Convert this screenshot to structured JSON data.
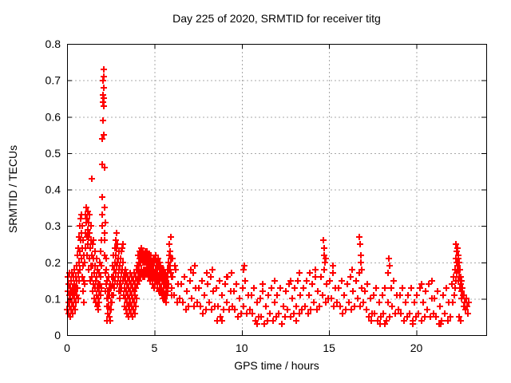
{
  "colors": {
    "background": "#ffffff",
    "marker": "#ff0000",
    "grid": "#a8a8a8",
    "axis": "#000000",
    "text": "#000000"
  },
  "chart_data": {
    "type": "scatter",
    "title": "Day 225 of 2020, SRMTID for receiver titg",
    "xlabel": "GPS time / hours",
    "ylabel": "SRMTID / TECUs",
    "xlim": [
      0,
      24
    ],
    "ylim": [
      0,
      0.8
    ],
    "x_ticks": [
      0,
      5,
      10,
      15,
      20
    ],
    "x_tick_labels": [
      "0",
      "5",
      "10",
      "15",
      "20"
    ],
    "y_ticks": [
      0,
      0.1,
      0.2,
      0.3,
      0.4,
      0.5,
      0.6,
      0.7,
      0.8
    ],
    "y_tick_labels": [
      "0",
      "0.1",
      "0.2",
      "0.3",
      "0.4",
      "0.5",
      "0.6",
      "0.7",
      "0.8"
    ],
    "grid": true,
    "legend": false,
    "marker": {
      "shape": "plus",
      "color": "#ff0000",
      "size": 8
    },
    "points_xy": [
      0.02,
      0.07,
      0.03,
      0.12,
      0.05,
      0.16,
      0.07,
      0.09,
      0.08,
      0.14,
      0.1,
      0.06,
      0.12,
      0.11,
      0.13,
      0.17,
      0.15,
      0.08,
      0.17,
      0.13,
      0.18,
      0.05,
      0.2,
      0.1,
      0.22,
      0.15,
      0.23,
      0.07,
      0.25,
      0.12,
      0.27,
      0.17,
      0.28,
      0.09,
      0.3,
      0.13,
      0.32,
      0.06,
      0.33,
      0.11,
      0.35,
      0.16,
      0.37,
      0.08,
      0.38,
      0.12,
      0.4,
      0.18,
      0.42,
      0.1,
      0.43,
      0.14,
      0.45,
      0.07,
      0.47,
      0.12,
      0.48,
      0.16,
      0.5,
      0.09,
      0.52,
      0.13,
      0.53,
      0.19,
      0.55,
      0.11,
      0.57,
      0.15,
      0.58,
      0.22,
      0.6,
      0.13,
      0.62,
      0.17,
      0.63,
      0.24,
      0.65,
      0.1,
      0.67,
      0.2,
      0.68,
      0.27,
      0.7,
      0.15,
      0.72,
      0.23,
      0.73,
      0.3,
      0.75,
      0.18,
      0.77,
      0.26,
      0.78,
      0.32,
      0.8,
      0.21,
      0.82,
      0.28,
      0.83,
      0.33,
      0.85,
      0.16,
      0.87,
      0.24,
      0.88,
      0.3,
      0.9,
      0.19,
      0.92,
      0.26,
      0.93,
      0.12,
      0.95,
      0.22,
      0.97,
      0.15,
      0.98,
      0.09,
      1.0,
      0.14,
      1.02,
      0.2,
      1.03,
      0.28,
      1.05,
      0.33,
      1.07,
      0.24,
      1.08,
      0.31,
      1.1,
      0.35,
      1.12,
      0.27,
      1.13,
      0.32,
      1.15,
      0.22,
      1.17,
      0.29,
      1.18,
      0.34,
      1.2,
      0.25,
      1.22,
      0.31,
      1.23,
      0.18,
      1.25,
      0.27,
      1.27,
      0.33,
      1.28,
      0.21,
      1.3,
      0.28,
      1.32,
      0.15,
      1.33,
      0.24,
      1.35,
      0.3,
      1.37,
      0.19,
      1.38,
      0.26,
      1.4,
      0.43,
      1.42,
      0.22,
      1.43,
      0.16,
      1.45,
      0.25,
      1.47,
      0.12,
      1.48,
      0.19,
      1.5,
      0.26,
      1.52,
      0.14,
      1.53,
      0.21,
      1.55,
      0.1,
      1.57,
      0.17,
      1.58,
      0.23,
      1.6,
      0.13,
      1.62,
      0.19,
      1.63,
      0.09,
      1.65,
      0.15,
      1.67,
      0.21,
      1.68,
      0.11,
      1.7,
      0.16,
      1.72,
      0.08,
      1.73,
      0.13,
      1.75,
      0.18,
      1.77,
      0.1,
      1.78,
      0.14,
      1.8,
      0.07,
      1.82,
      0.12,
      1.83,
      0.17,
      1.85,
      0.09,
      1.87,
      0.14,
      1.88,
      0.2,
      1.9,
      0.11,
      1.92,
      0.16,
      1.93,
      0.23,
      1.95,
      0.13,
      1.97,
      0.19,
      1.98,
      0.26,
      2.0,
      0.3,
      2.0,
      0.38,
      2.02,
      0.33,
      2.02,
      0.47,
      2.03,
      0.54,
      2.05,
      0.59,
      2.05,
      0.64,
      2.07,
      0.66,
      2.07,
      0.7,
      2.08,
      0.68,
      2.08,
      0.73,
      2.1,
      0.71,
      2.1,
      0.65,
      2.12,
      0.63,
      2.12,
      0.55,
      2.13,
      0.46,
      2.13,
      0.28,
      2.15,
      0.35,
      2.15,
      0.22,
      2.17,
      0.26,
      2.18,
      0.17,
      2.2,
      0.12,
      2.2,
      0.31,
      2.22,
      0.21,
      2.23,
      0.14,
      2.25,
      0.18,
      2.27,
      0.1,
      2.28,
      0.15,
      2.3,
      0.08,
      2.3,
      0.04,
      2.32,
      0.12,
      2.33,
      0.06,
      2.35,
      0.1,
      2.37,
      0.16,
      2.38,
      0.08,
      2.4,
      0.13,
      2.42,
      0.05,
      2.43,
      0.11,
      2.45,
      0.07,
      2.47,
      0.14,
      2.48,
      0.04,
      2.5,
      0.09,
      2.52,
      0.13,
      2.53,
      0.07,
      2.55,
      0.11,
      2.57,
      0.16,
      2.58,
      0.09,
      2.6,
      0.14,
      2.62,
      0.19,
      2.63,
      0.11,
      2.65,
      0.16,
      2.67,
      0.22,
      2.68,
      0.13,
      2.7,
      0.18,
      2.72,
      0.24,
      2.73,
      0.15,
      2.75,
      0.2,
      2.77,
      0.26,
      2.78,
      0.17,
      2.8,
      0.22,
      2.82,
      0.28,
      2.83,
      0.19,
      2.85,
      0.24,
      2.87,
      0.14,
      2.88,
      0.2,
      2.9,
      0.25,
      2.92,
      0.16,
      2.93,
      0.21,
      2.95,
      0.12,
      2.97,
      0.18,
      2.98,
      0.23,
      3.0,
      0.14,
      3.02,
      0.19,
      3.03,
      0.1,
      3.05,
      0.15,
      3.07,
      0.21,
      3.08,
      0.12,
      3.1,
      0.17,
      3.12,
      0.23,
      3.13,
      0.13,
      3.15,
      0.18,
      3.17,
      0.24,
      3.18,
      0.15,
      3.2,
      0.2,
      3.22,
      0.25,
      3.23,
      0.16,
      3.25,
      0.11,
      3.27,
      0.17,
      3.28,
      0.08,
      3.3,
      0.13,
      3.32,
      0.18,
      3.33,
      0.1,
      3.35,
      0.15,
      3.37,
      0.07,
      3.38,
      0.12,
      3.4,
      0.17,
      3.42,
      0.09,
      3.43,
      0.14,
      3.45,
      0.06,
      3.47,
      0.11,
      3.48,
      0.16,
      3.5,
      0.08,
      3.52,
      0.13,
      3.53,
      0.05,
      3.55,
      0.1,
      3.57,
      0.15,
      3.58,
      0.07,
      3.6,
      0.12,
      3.62,
      0.17,
      3.63,
      0.09,
      3.65,
      0.14,
      3.67,
      0.06,
      3.68,
      0.11,
      3.7,
      0.16,
      3.72,
      0.08,
      3.73,
      0.13,
      3.75,
      0.05,
      3.77,
      0.1,
      3.78,
      0.15,
      3.8,
      0.07,
      3.82,
      0.12,
      3.83,
      0.17,
      3.85,
      0.09,
      3.87,
      0.14,
      3.88,
      0.06,
      3.9,
      0.11,
      3.92,
      0.16,
      3.93,
      0.08,
      3.95,
      0.13,
      3.97,
      0.18,
      3.98,
      0.1,
      4.0,
      0.15,
      4.02,
      0.19,
      4.03,
      0.14,
      4.05,
      0.18,
      4.07,
      0.22,
      4.08,
      0.16,
      4.1,
      0.2,
      4.12,
      0.15,
      4.13,
      0.19,
      4.15,
      0.23,
      4.17,
      0.17,
      4.18,
      0.21,
      4.2,
      0.16,
      4.22,
      0.2,
      4.23,
      0.24,
      4.25,
      0.18,
      4.27,
      0.22,
      4.28,
      0.17,
      4.3,
      0.21,
      4.32,
      0.16,
      4.33,
      0.2,
      4.35,
      0.23,
      4.37,
      0.18,
      4.38,
      0.22,
      4.4,
      0.17,
      4.42,
      0.21,
      4.43,
      0.16,
      4.45,
      0.2,
      4.47,
      0.23,
      4.48,
      0.18,
      4.5,
      0.21,
      4.52,
      0.17,
      4.53,
      0.2,
      4.55,
      0.23,
      4.57,
      0.18,
      4.58,
      0.21,
      4.6,
      0.17,
      4.62,
      0.2,
      4.63,
      0.22,
      4.65,
      0.18,
      4.67,
      0.21,
      4.68,
      0.16,
      4.7,
      0.19,
      4.72,
      0.22,
      4.73,
      0.17,
      4.75,
      0.2,
      4.77,
      0.15,
      4.78,
      0.19,
      4.8,
      0.22,
      4.82,
      0.17,
      4.83,
      0.2,
      4.85,
      0.16,
      4.87,
      0.19,
      4.88,
      0.14,
      4.9,
      0.18,
      4.92,
      0.21,
      4.93,
      0.16,
      4.95,
      0.19,
      4.97,
      0.13,
      4.98,
      0.17,
      5.0,
      0.2,
      5.02,
      0.16,
      5.03,
      0.21,
      5.05,
      0.14,
      5.07,
      0.18,
      5.08,
      0.22,
      5.1,
      0.16,
      5.12,
      0.2,
      5.13,
      0.15,
      5.15,
      0.19,
      5.17,
      0.13,
      5.18,
      0.17,
      5.2,
      0.21,
      5.22,
      0.15,
      5.23,
      0.19,
      5.25,
      0.12,
      5.27,
      0.16,
      5.28,
      0.2,
      5.3,
      0.14,
      5.32,
      0.18,
      5.33,
      0.12,
      5.35,
      0.16,
      5.37,
      0.19,
      5.38,
      0.13,
      5.4,
      0.17,
      5.42,
      0.11,
      5.43,
      0.15,
      5.45,
      0.18,
      5.47,
      0.12,
      5.48,
      0.16,
      5.5,
      0.1,
      5.52,
      0.14,
      5.53,
      0.18,
      5.55,
      0.12,
      5.57,
      0.16,
      5.58,
      0.1,
      5.6,
      0.14,
      5.62,
      0.17,
      5.63,
      0.11,
      5.65,
      0.15,
      5.67,
      0.09,
      5.68,
      0.13,
      5.7,
      0.16,
      5.72,
      0.11,
      5.73,
      0.14,
      5.75,
      0.18,
      5.77,
      0.12,
      5.78,
      0.16,
      5.8,
      0.2,
      5.82,
      0.14,
      5.83,
      0.18,
      5.85,
      0.22,
      5.87,
      0.25,
      5.88,
      0.19,
      5.9,
      0.23,
      5.92,
      0.27,
      5.93,
      0.17,
      5.95,
      0.21,
      5.97,
      0.13,
      5.98,
      0.16,
      6.0,
      0.11,
      6.04,
      0.16,
      6.05,
      0.21,
      6.12,
      0.11,
      6.15,
      0.19,
      6.21,
      0.18,
      6.29,
      0.09,
      6.37,
      0.14,
      6.46,
      0.1,
      6.54,
      0.14,
      6.62,
      0.09,
      6.71,
      0.16,
      6.79,
      0.07,
      6.87,
      0.12,
      6.96,
      0.08,
      7.04,
      0.15,
      7.1,
      0.18,
      7.12,
      0.1,
      7.21,
      0.17,
      7.29,
      0.08,
      7.3,
      0.19,
      7.37,
      0.13,
      7.46,
      0.09,
      7.54,
      0.13,
      7.62,
      0.08,
      7.71,
      0.15,
      7.79,
      0.06,
      7.87,
      0.11,
      7.96,
      0.07,
      8.02,
      0.17,
      8.04,
      0.14,
      8.12,
      0.09,
      8.21,
      0.16,
      8.29,
      0.07,
      8.32,
      0.18,
      8.37,
      0.12,
      8.46,
      0.08,
      8.54,
      0.13,
      8.6,
      0.04,
      8.62,
      0.08,
      8.71,
      0.15,
      8.79,
      0.05,
      8.85,
      0.04,
      8.87,
      0.11,
      8.96,
      0.07,
      9.04,
      0.14,
      9.12,
      0.09,
      9.12,
      0.16,
      9.21,
      0.16,
      9.29,
      0.07,
      9.37,
      0.12,
      9.42,
      0.17,
      9.46,
      0.08,
      9.54,
      0.12,
      9.62,
      0.07,
      9.71,
      0.14,
      9.79,
      0.05,
      9.87,
      0.1,
      9.96,
      0.06,
      10.04,
      0.13,
      10.08,
      0.18,
      10.12,
      0.08,
      10.14,
      0.19,
      10.21,
      0.15,
      10.29,
      0.06,
      10.37,
      0.11,
      10.46,
      0.07,
      10.54,
      0.11,
      10.62,
      0.06,
      10.71,
      0.13,
      10.79,
      0.04,
      10.87,
      0.09,
      10.9,
      0.03,
      10.96,
      0.05,
      11.04,
      0.1,
      11.12,
      0.05,
      11.2,
      0.14,
      11.21,
      0.12,
      11.29,
      0.03,
      11.37,
      0.08,
      11.46,
      0.04,
      11.54,
      0.11,
      11.62,
      0.06,
      11.71,
      0.13,
      11.79,
      0.04,
      11.87,
      0.09,
      11.9,
      0.15,
      11.96,
      0.05,
      12.04,
      0.11,
      12.12,
      0.06,
      12.21,
      0.13,
      12.29,
      0.03,
      12.37,
      0.08,
      12.46,
      0.05,
      12.54,
      0.12,
      12.62,
      0.07,
      12.71,
      0.14,
      12.79,
      0.05,
      12.8,
      0.15,
      12.87,
      0.1,
      12.96,
      0.06,
      13.04,
      0.13,
      13.1,
      0.04,
      13.12,
      0.08,
      13.21,
      0.15,
      13.29,
      0.06,
      13.3,
      0.17,
      13.37,
      0.11,
      13.46,
      0.07,
      13.54,
      0.13,
      13.62,
      0.08,
      13.71,
      0.15,
      13.79,
      0.06,
      13.87,
      0.11,
      13.9,
      0.17,
      13.96,
      0.07,
      14.04,
      0.14,
      14.12,
      0.09,
      14.2,
      0.18,
      14.21,
      0.16,
      14.29,
      0.07,
      14.37,
      0.12,
      14.46,
      0.08,
      14.54,
      0.16,
      14.62,
      0.11,
      14.68,
      0.26,
      14.7,
      0.24,
      14.71,
      0.18,
      14.73,
      0.22,
      14.76,
      0.2,
      14.79,
      0.09,
      14.82,
      0.21,
      14.87,
      0.14,
      14.96,
      0.1,
      15.04,
      0.15,
      15.12,
      0.1,
      15.2,
      0.19,
      15.21,
      0.17,
      15.29,
      0.08,
      15.37,
      0.13,
      15.46,
      0.09,
      15.54,
      0.13,
      15.62,
      0.08,
      15.71,
      0.15,
      15.79,
      0.06,
      15.87,
      0.11,
      15.96,
      0.07,
      16.04,
      0.14,
      16.12,
      0.09,
      16.21,
      0.16,
      16.29,
      0.07,
      16.3,
      0.18,
      16.37,
      0.12,
      16.46,
      0.08,
      16.54,
      0.15,
      16.62,
      0.1,
      16.71,
      0.17,
      16.75,
      0.27,
      16.78,
      0.25,
      16.79,
      0.08,
      16.81,
      0.22,
      16.84,
      0.2,
      16.87,
      0.13,
      16.88,
      0.18,
      16.96,
      0.09,
      17.04,
      0.12,
      17.12,
      0.07,
      17.21,
      0.14,
      17.29,
      0.05,
      17.37,
      0.1,
      17.4,
      0.04,
      17.46,
      0.06,
      17.54,
      0.11,
      17.62,
      0.06,
      17.71,
      0.13,
      17.79,
      0.04,
      17.87,
      0.09,
      17.9,
      0.03,
      17.96,
      0.05,
      18.04,
      0.11,
      18.12,
      0.06,
      18.2,
      0.03,
      18.21,
      0.13,
      18.29,
      0.04,
      18.37,
      0.09,
      18.4,
      0.17,
      18.44,
      0.21,
      18.46,
      0.05,
      18.48,
      0.19,
      18.54,
      0.13,
      18.62,
      0.08,
      18.71,
      0.15,
      18.79,
      0.06,
      18.87,
      0.11,
      18.96,
      0.07,
      19.04,
      0.11,
      19.12,
      0.06,
      19.21,
      0.13,
      19.29,
      0.04,
      19.37,
      0.09,
      19.46,
      0.05,
      19.54,
      0.11,
      19.62,
      0.06,
      19.71,
      0.13,
      19.79,
      0.04,
      19.8,
      0.03,
      19.87,
      0.09,
      19.96,
      0.05,
      20.04,
      0.11,
      20.12,
      0.06,
      20.21,
      0.13,
      20.29,
      0.04,
      20.3,
      0.14,
      20.37,
      0.09,
      20.46,
      0.05,
      20.54,
      0.12,
      20.62,
      0.07,
      20.71,
      0.14,
      20.79,
      0.05,
      20.87,
      0.1,
      20.9,
      0.15,
      20.96,
      0.06,
      21.04,
      0.1,
      21.12,
      0.05,
      21.21,
      0.12,
      21.29,
      0.03,
      21.37,
      0.08,
      21.4,
      0.03,
      21.46,
      0.04,
      21.54,
      0.11,
      21.62,
      0.06,
      21.71,
      0.13,
      21.79,
      0.04,
      21.87,
      0.09,
      21.96,
      0.05,
      22.04,
      0.14,
      22.08,
      0.09,
      22.12,
      0.16,
      22.16,
      0.11,
      22.2,
      0.18,
      22.2,
      0.13,
      22.24,
      0.21,
      22.26,
      0.15,
      22.28,
      0.25,
      22.3,
      0.23,
      22.3,
      0.17,
      22.32,
      0.2,
      22.34,
      0.24,
      22.36,
      0.19,
      22.38,
      0.22,
      22.4,
      0.18,
      22.4,
      0.15,
      22.42,
      0.21,
      22.44,
      0.16,
      22.46,
      0.2,
      22.46,
      0.05,
      22.48,
      0.13,
      22.5,
      0.18,
      22.52,
      0.14,
      22.54,
      0.16,
      22.54,
      0.04,
      22.56,
      0.12,
      22.58,
      0.15,
      22.6,
      0.1,
      22.62,
      0.13,
      22.66,
      0.11,
      22.7,
      0.08,
      22.74,
      0.11,
      22.78,
      0.09,
      22.82,
      0.07,
      22.86,
      0.1,
      22.9,
      0.08,
      22.94,
      0.06,
      22.98,
      0.09
    ]
  }
}
